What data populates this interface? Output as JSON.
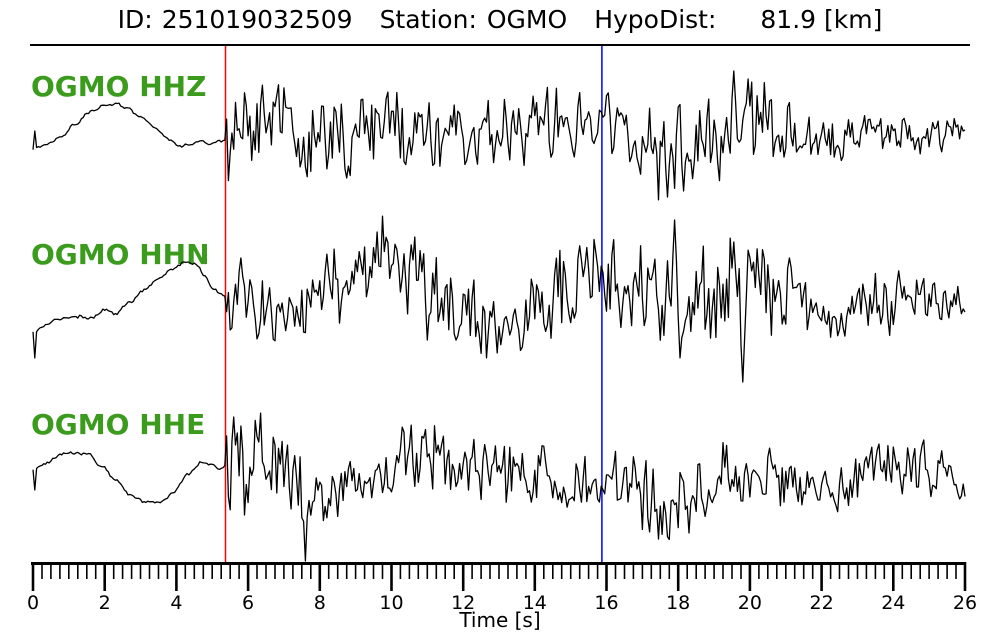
{
  "header": {
    "groups": [
      {
        "label": "ID:",
        "value": "251019032509"
      },
      {
        "label": "Station:",
        "value": "OGMO"
      },
      {
        "label": "HypoDist:",
        "value": "81.9 [km]"
      }
    ]
  },
  "chart_data": {
    "type": "line",
    "title": "ID: 251019032509  Station: OGMO  HypoDist: 81.9 [km]",
    "xlabel": "Time [s]",
    "x_range": [
      0,
      26
    ],
    "x_major_ticks": [
      0,
      2,
      4,
      6,
      8,
      10,
      12,
      14,
      16,
      18,
      20,
      22,
      24,
      26
    ],
    "x_minor_step": 0.25,
    "grid": false,
    "legend": "none",
    "background": "#ffffff",
    "trace_color": "#000000",
    "label_color": "#3a9b1c",
    "axis_color": "#000000",
    "picks": [
      {
        "name": "red",
        "time": 5.37,
        "color": "#ff0000"
      },
      {
        "name": "blue",
        "time": 15.87,
        "color": "#0000ff"
      }
    ],
    "channels": [
      {
        "id": "HHZ",
        "label": "OGMO HHZ",
        "center": 133,
        "seed": 9001,
        "phase": 0.7,
        "pre_noise": 2.6,
        "pre": [
          [
            0,
            16
          ],
          [
            0.4,
            12
          ],
          [
            0.8,
            3
          ],
          [
            1.2,
            -9
          ],
          [
            1.6,
            -21
          ],
          [
            2.0,
            -27
          ],
          [
            2.3,
            -29
          ],
          [
            2.6,
            -26
          ],
          [
            3.0,
            -17
          ],
          [
            3.4,
            -5
          ],
          [
            3.8,
            7
          ],
          [
            4.1,
            13
          ],
          [
            4.4,
            12
          ],
          [
            4.7,
            9
          ],
          [
            5.0,
            11
          ],
          [
            5.2,
            8
          ],
          [
            5.37,
            7
          ]
        ],
        "env": [
          [
            5.37,
            52
          ],
          [
            6.0,
            46
          ],
          [
            6.6,
            40
          ],
          [
            7.4,
            44
          ],
          [
            8.2,
            38
          ],
          [
            9.2,
            40
          ],
          [
            10.2,
            42
          ],
          [
            11.2,
            34
          ],
          [
            12.2,
            32
          ],
          [
            13.2,
            30
          ],
          [
            14.2,
            34
          ],
          [
            15.2,
            32
          ],
          [
            15.87,
            30
          ],
          [
            16.6,
            32
          ],
          [
            17.2,
            40
          ],
          [
            17.8,
            50
          ],
          [
            18.4,
            44
          ],
          [
            19.0,
            36
          ],
          [
            19.6,
            48
          ],
          [
            20.2,
            44
          ],
          [
            20.8,
            30
          ],
          [
            21.6,
            24
          ],
          [
            22.4,
            22
          ],
          [
            23.2,
            22
          ],
          [
            24.0,
            20
          ],
          [
            24.8,
            18
          ],
          [
            25.4,
            17
          ],
          [
            26,
            16
          ]
        ],
        "wander": [
          [
            5.37,
            0
          ],
          [
            6.5,
            -4
          ],
          [
            8,
            4
          ],
          [
            10,
            -2
          ],
          [
            12,
            4
          ],
          [
            13.5,
            -4
          ],
          [
            14.5,
            -12
          ],
          [
            15.3,
            -17
          ],
          [
            15.87,
            -13
          ],
          [
            16.6,
            4
          ],
          [
            17.4,
            22
          ],
          [
            18.2,
            26
          ],
          [
            18.9,
            12
          ],
          [
            19.5,
            -14
          ],
          [
            20.1,
            -16
          ],
          [
            20.8,
            -4
          ],
          [
            21.6,
            4
          ],
          [
            22.4,
            6
          ],
          [
            23.2,
            -2
          ],
          [
            24,
            3
          ],
          [
            24.8,
            -1
          ],
          [
            25.4,
            2
          ],
          [
            26,
            0
          ]
        ],
        "spikes": [
          [
            0.05,
            -2
          ],
          [
            17.7,
            64
          ],
          [
            18.15,
            58
          ],
          [
            19.55,
            -62
          ],
          [
            19.95,
            -54
          ]
        ]
      },
      {
        "id": "HHN",
        "label": "OGMO HHN",
        "center": 300,
        "seed": 4242,
        "phase": 2.1,
        "pre_noise": 3,
        "pre": [
          [
            0,
            32
          ],
          [
            0.4,
            24
          ],
          [
            0.8,
            19
          ],
          [
            1.2,
            15
          ],
          [
            1.6,
            17
          ],
          [
            2.0,
            10
          ],
          [
            2.3,
            14
          ],
          [
            2.7,
            2
          ],
          [
            3.1,
            -10
          ],
          [
            3.5,
            -20
          ],
          [
            3.9,
            -30
          ],
          [
            4.2,
            -38
          ],
          [
            4.5,
            -36
          ],
          [
            4.8,
            -24
          ],
          [
            5.05,
            -12
          ],
          [
            5.25,
            -6
          ],
          [
            5.37,
            -5
          ]
        ],
        "env": [
          [
            5.37,
            46
          ],
          [
            6.2,
            40
          ],
          [
            7.0,
            36
          ],
          [
            8.0,
            38
          ],
          [
            9.0,
            44
          ],
          [
            9.6,
            50
          ],
          [
            10.4,
            48
          ],
          [
            11.2,
            40
          ],
          [
            12.0,
            34
          ],
          [
            13.0,
            32
          ],
          [
            14.0,
            38
          ],
          [
            15.0,
            42
          ],
          [
            15.87,
            40
          ],
          [
            16.6,
            44
          ],
          [
            17.4,
            50
          ],
          [
            18.2,
            50
          ],
          [
            19.0,
            44
          ],
          [
            19.6,
            48
          ],
          [
            20.4,
            44
          ],
          [
            21.2,
            34
          ],
          [
            21.9,
            26
          ],
          [
            22.6,
            24
          ],
          [
            23.4,
            30
          ],
          [
            24.2,
            32
          ],
          [
            24.9,
            26
          ],
          [
            25.5,
            20
          ],
          [
            26,
            18
          ]
        ],
        "wander": [
          [
            5.37,
            4
          ],
          [
            6.4,
            14
          ],
          [
            7.4,
            4
          ],
          [
            8.4,
            -14
          ],
          [
            9.4,
            -28
          ],
          [
            10.2,
            -24
          ],
          [
            11.0,
            -6
          ],
          [
            12.0,
            18
          ],
          [
            13.0,
            28
          ],
          [
            13.8,
            18
          ],
          [
            14.6,
            -6
          ],
          [
            15.3,
            -24
          ],
          [
            15.87,
            -28
          ],
          [
            16.8,
            -10
          ],
          [
            17.5,
            4
          ],
          [
            18.2,
            8
          ],
          [
            19.0,
            -6
          ],
          [
            19.8,
            -18
          ],
          [
            20.5,
            -12
          ],
          [
            21.3,
            2
          ],
          [
            22.0,
            14
          ],
          [
            22.8,
            18
          ],
          [
            23.5,
            4
          ],
          [
            24.2,
            -8
          ],
          [
            25.0,
            -4
          ],
          [
            25.6,
            4
          ],
          [
            26,
            8
          ]
        ],
        "spikes": [
          [
            0.05,
            58
          ],
          [
            9.62,
            -68
          ],
          [
            17.88,
            -80
          ],
          [
            19.55,
            -58
          ],
          [
            19.78,
            82
          ]
        ]
      },
      {
        "id": "HHE",
        "label": "OGMO HHE",
        "center": 473,
        "seed": 777,
        "phase": 4.4,
        "pre_noise": 2.6,
        "pre": [
          [
            0,
            -3
          ],
          [
            0.3,
            -9
          ],
          [
            0.7,
            -17
          ],
          [
            1.1,
            -21
          ],
          [
            1.5,
            -19
          ],
          [
            1.9,
            -8
          ],
          [
            2.3,
            7
          ],
          [
            2.7,
            21
          ],
          [
            3.1,
            29
          ],
          [
            3.5,
            31
          ],
          [
            3.9,
            21
          ],
          [
            4.3,
            2
          ],
          [
            4.7,
            -11
          ],
          [
            5.0,
            -9
          ],
          [
            5.2,
            -5
          ],
          [
            5.37,
            -7
          ]
        ],
        "env": [
          [
            5.37,
            56
          ],
          [
            5.8,
            60
          ],
          [
            6.3,
            48
          ],
          [
            7.0,
            40
          ],
          [
            7.6,
            42
          ],
          [
            8.2,
            26
          ],
          [
            9.0,
            22
          ],
          [
            9.8,
            32
          ],
          [
            10.6,
            38
          ],
          [
            11.4,
            34
          ],
          [
            12.2,
            30
          ],
          [
            13.0,
            32
          ],
          [
            14.0,
            28
          ],
          [
            15.0,
            24
          ],
          [
            15.87,
            26
          ],
          [
            16.6,
            34
          ],
          [
            17.2,
            44
          ],
          [
            18.0,
            46
          ],
          [
            18.8,
            40
          ],
          [
            19.5,
            38
          ],
          [
            20.2,
            34
          ],
          [
            21.0,
            26
          ],
          [
            21.8,
            20
          ],
          [
            22.6,
            22
          ],
          [
            23.4,
            28
          ],
          [
            24.2,
            30
          ],
          [
            24.9,
            24
          ],
          [
            25.5,
            18
          ],
          [
            26,
            16
          ]
        ],
        "wander": [
          [
            5.37,
            -8
          ],
          [
            6.0,
            -14
          ],
          [
            6.8,
            0
          ],
          [
            7.5,
            14
          ],
          [
            8.3,
            24
          ],
          [
            9.0,
            18
          ],
          [
            9.8,
            0
          ],
          [
            10.6,
            -14
          ],
          [
            11.3,
            -16
          ],
          [
            12.0,
            -8
          ],
          [
            13.0,
            0
          ],
          [
            13.8,
            -4
          ],
          [
            14.5,
            4
          ],
          [
            15.2,
            7
          ],
          [
            15.87,
            0
          ],
          [
            16.6,
            8
          ],
          [
            17.4,
            18
          ],
          [
            18.2,
            16
          ],
          [
            19.0,
            4
          ],
          [
            19.8,
            -6
          ],
          [
            20.5,
            0
          ],
          [
            21.2,
            12
          ],
          [
            22.0,
            22
          ],
          [
            22.8,
            12
          ],
          [
            23.5,
            -4
          ],
          [
            24.2,
            -10
          ],
          [
            25.0,
            -4
          ],
          [
            25.6,
            4
          ],
          [
            26,
            6
          ]
        ],
        "spikes": [
          [
            0.05,
            17
          ],
          [
            5.62,
            -56
          ],
          [
            7.62,
            88
          ],
          [
            17.45,
            66
          ],
          [
            18.3,
            60
          ]
        ]
      }
    ]
  }
}
